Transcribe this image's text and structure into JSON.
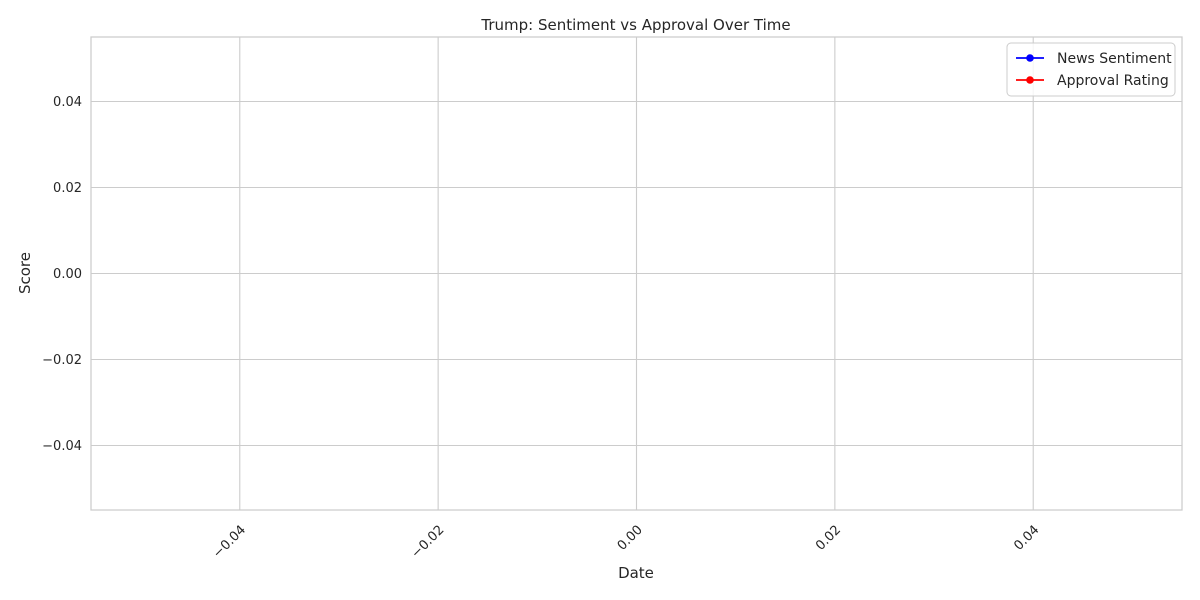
{
  "chart_data": {
    "type": "line",
    "title": "Trump: Sentiment vs Approval Over Time",
    "xlabel": "Date",
    "ylabel": "Score",
    "xlim": [
      -0.055,
      0.055
    ],
    "ylim": [
      -0.055,
      0.055
    ],
    "x_ticks": [
      -0.04,
      -0.02,
      0.0,
      0.02,
      0.04
    ],
    "x_tick_labels": [
      "−0.04",
      "−0.02",
      "0.00",
      "0.02",
      "0.04"
    ],
    "y_ticks": [
      0.04,
      0.02,
      0.0,
      -0.02,
      -0.04
    ],
    "y_tick_labels": [
      "0.04",
      "0.02",
      "0.00",
      "−0.02",
      "−0.04"
    ],
    "grid": true,
    "legend_position": "top-right",
    "series": [
      {
        "name": "News Sentiment",
        "color": "#0000ff",
        "x": [],
        "y": []
      },
      {
        "name": "Approval Rating",
        "color": "#ff0000",
        "x": [],
        "y": []
      }
    ]
  }
}
